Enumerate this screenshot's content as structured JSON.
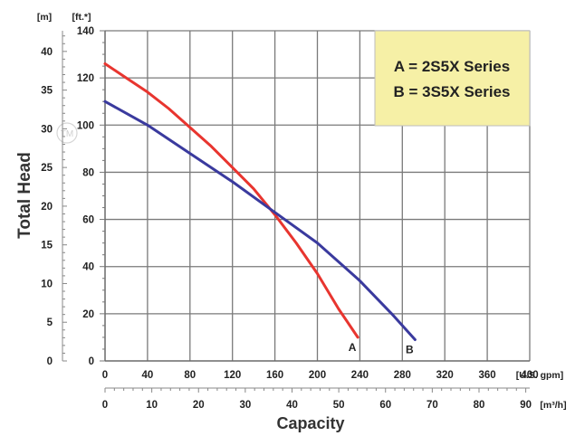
{
  "chart_data": {
    "type": "line",
    "xlabel": "Capacity",
    "ylabel": "Total Head",
    "x_primary": {
      "unit": "[U.S. gpm]",
      "range": [
        0,
        400
      ],
      "ticks": [
        0,
        40,
        80,
        120,
        160,
        200,
        240,
        280,
        320,
        360,
        400
      ]
    },
    "x_secondary": {
      "unit": "[m³/h]",
      "range": [
        0,
        90.85
      ],
      "ticks": [
        0,
        10,
        20,
        30,
        40,
        50,
        60,
        70,
        80,
        90
      ]
    },
    "y_primary": {
      "unit": "[ft.*]",
      "range": [
        0,
        140
      ],
      "ticks": [
        0,
        20,
        40,
        60,
        80,
        100,
        120,
        140
      ]
    },
    "y_secondary": {
      "unit": "[m]",
      "range": [
        0,
        42.67
      ],
      "ticks": [
        0,
        5,
        10,
        15,
        20,
        25,
        30,
        35,
        40
      ]
    },
    "grid": true,
    "legend": {
      "position": "top-right",
      "entries": [
        "A = 2S5X Series",
        "B = 3S5X Series"
      ]
    },
    "series": [
      {
        "name": "A",
        "color": "#e8352f",
        "x": [
          0,
          20,
          40,
          60,
          80,
          100,
          120,
          140,
          160,
          180,
          200,
          220,
          238
        ],
        "y": [
          126,
          120,
          114,
          107,
          99,
          91,
          82,
          73,
          62,
          50,
          37,
          22,
          10
        ]
      },
      {
        "name": "B",
        "color": "#3a3a9e",
        "x": [
          0,
          40,
          80,
          120,
          160,
          200,
          240,
          270,
          292
        ],
        "y": [
          110,
          100,
          88,
          76,
          63,
          50,
          34,
          20,
          9
        ]
      }
    ],
    "watermark": "TM"
  }
}
